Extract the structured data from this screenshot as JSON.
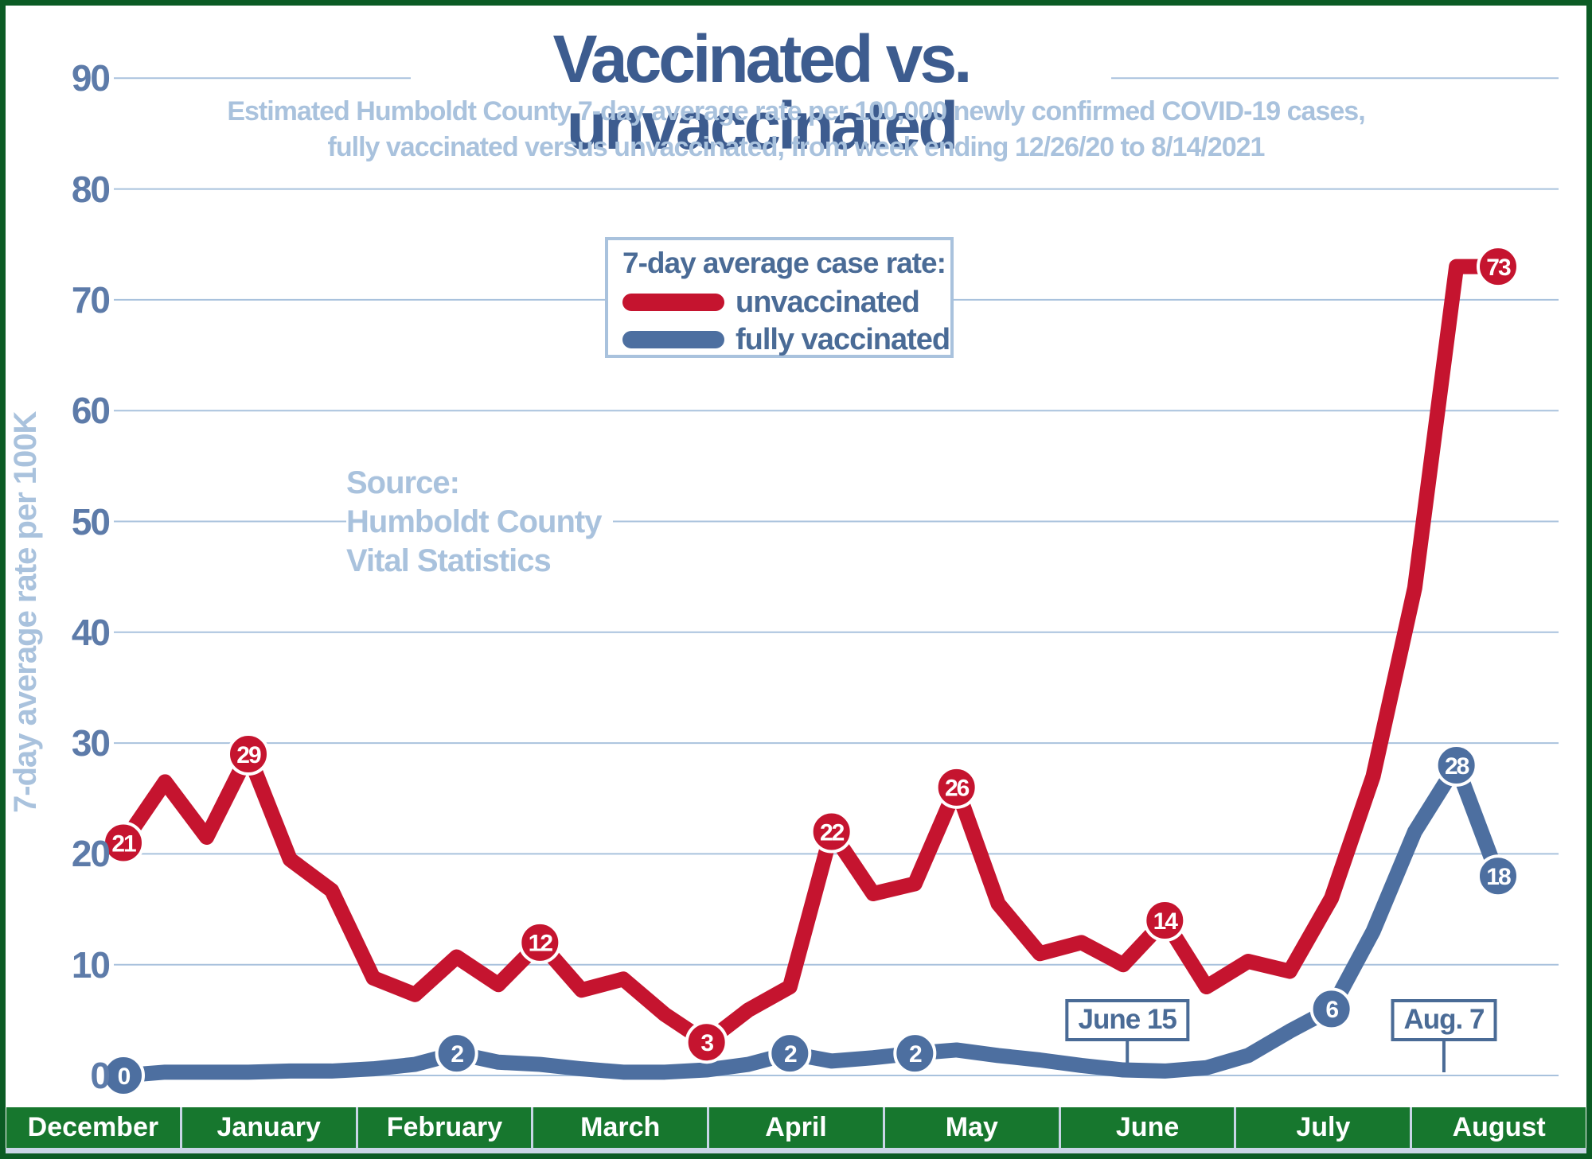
{
  "title": "Vaccinated vs. unvaccinated",
  "subtitle_line1": "Estimated Humboldt County 7-day average rate per 100,000 newly confirmed COVID-19 cases,",
  "subtitle_line2": "fully vaccinated versus unvaccinated, from week ending 12/26/20 to 8/14/2021",
  "legend": {
    "heading": "7-day average case rate:",
    "items": [
      {
        "label": "unvaccinated",
        "color": "#c5142f"
      },
      {
        "label": "fully vaccinated",
        "color": "#4d6fa0"
      }
    ]
  },
  "source": {
    "line1": "Source:",
    "line2": "Humboldt County",
    "line3": "Vital Statistics"
  },
  "y_axis_title": "7-day average rate per 100K",
  "colors": {
    "unvaccinated_red": "#c5142f",
    "vaccinated_blue": "#4d6fa0",
    "title_blue": "#3d5c8f",
    "light_blue": "#a9c2dd",
    "tick_blue": "#5d7ba9",
    "gridline": "#a9c2dd",
    "month_band_green": "#17772e",
    "frame_green": "#0b5b24",
    "callout_blue": "#4a6b96"
  },
  "chart_data": {
    "type": "line",
    "x_unit": "weekly points, week ending 12/26/20 through 8/14/2021",
    "categories_months": [
      "December",
      "January",
      "February",
      "March",
      "April",
      "May",
      "June",
      "July",
      "August"
    ],
    "ylim": [
      0,
      90
    ],
    "yticks": [
      0,
      10,
      20,
      30,
      40,
      50,
      60,
      70,
      80,
      90
    ],
    "grid": true,
    "legend_position": "upper middle",
    "series": [
      {
        "name": "unvaccinated",
        "color": "#c5142f",
        "values": [
          21,
          26.5,
          21.5,
          29,
          19.5,
          16.7,
          8.8,
          7.3,
          10.7,
          8.2,
          12,
          7.7,
          8.7,
          5.5,
          3,
          5.9,
          8,
          22,
          16.4,
          17.3,
          26,
          15.5,
          11,
          12,
          10,
          14,
          8,
          10.3,
          9.4,
          16,
          27,
          44,
          73,
          73
        ],
        "point_labels": [
          {
            "index": 0,
            "label": "21"
          },
          {
            "index": 3,
            "label": "29"
          },
          {
            "index": 10,
            "label": "12"
          },
          {
            "index": 14,
            "label": "3"
          },
          {
            "index": 17,
            "label": "22"
          },
          {
            "index": 20,
            "label": "26"
          },
          {
            "index": 25,
            "label": "14"
          },
          {
            "index": 33,
            "label": "73"
          }
        ]
      },
      {
        "name": "fully vaccinated",
        "color": "#4d6fa0",
        "values": [
          0,
          0.3,
          0.3,
          0.3,
          0.4,
          0.4,
          0.6,
          1,
          2,
          1.2,
          1,
          0.6,
          0.3,
          0.3,
          0.5,
          1,
          2,
          1.3,
          1.6,
          2,
          2.3,
          1.8,
          1.4,
          0.9,
          0.5,
          0.4,
          0.7,
          1.8,
          4,
          6,
          13,
          22,
          28,
          18
        ],
        "point_labels": [
          {
            "index": 0,
            "label": "0"
          },
          {
            "index": 8,
            "label": "2"
          },
          {
            "index": 16,
            "label": "2"
          },
          {
            "index": 19,
            "label": "2"
          },
          {
            "index": 29,
            "label": "6"
          },
          {
            "index": 32,
            "label": "28"
          },
          {
            "index": 33,
            "label": "18"
          }
        ]
      }
    ],
    "annotations": [
      {
        "label": "June 15",
        "week": 24.1
      },
      {
        "label": "Aug. 7",
        "week": 31.7
      }
    ]
  }
}
